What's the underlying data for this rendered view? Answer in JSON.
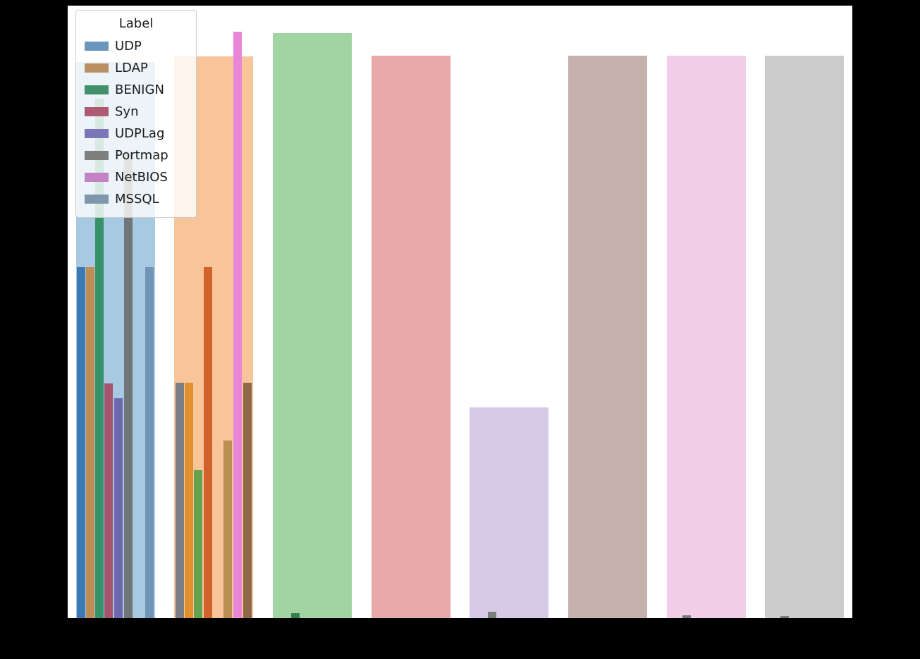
{
  "page": {
    "background": "#000000"
  },
  "legend": {
    "title": "Label",
    "entries": [
      {
        "label": "UDP",
        "color": "#6a95bf"
      },
      {
        "label": "LDAP",
        "color": "#b99063"
      },
      {
        "label": "BENIGN",
        "color": "#43916c"
      },
      {
        "label": "Syn",
        "color": "#ae5a75"
      },
      {
        "label": "UDPLag",
        "color": "#7b76b9"
      },
      {
        "label": "Portmap",
        "color": "#7f7f7f"
      },
      {
        "label": "NetBIOS",
        "color": "#c481c6"
      },
      {
        "label": "MSSQL",
        "color": "#7e97ad"
      }
    ]
  },
  "chart_data": {
    "type": "bar",
    "title": "",
    "xlabel": "",
    "ylabel": "",
    "legend_title": "Label",
    "legend_position": "upper left",
    "axis_tick_labels_visible": false,
    "categories": [
      "UDP",
      "LDAP",
      "BENIGN",
      "Syn",
      "UDPLag",
      "Portmap",
      "NetBIOS",
      "MSSQL"
    ],
    "background_bars": [
      {
        "category": "UDP",
        "left_pct": 1.08,
        "width_pct": 10.06,
        "height_pct": 90.8,
        "color": "#a7c9e1"
      },
      {
        "category": "LDAP",
        "left_pct": 13.57,
        "width_pct": 10.06,
        "height_pct": 91.7,
        "color": "#f8c59b"
      },
      {
        "category": "BENIGN",
        "left_pct": 26.15,
        "width_pct": 10.06,
        "height_pct": 95.5,
        "color": "#a2d3a2"
      },
      {
        "category": "Syn",
        "left_pct": 38.72,
        "width_pct": 10.06,
        "height_pct": 91.8,
        "color": "#e8a9a9"
      },
      {
        "category": "UDPLag",
        "left_pct": 51.21,
        "width_pct": 10.06,
        "height_pct": 34.4,
        "color": "#d5cbe7"
      },
      {
        "category": "Portmap",
        "left_pct": 63.79,
        "width_pct": 10.06,
        "height_pct": 91.8,
        "color": "#c5b2ad"
      },
      {
        "category": "NetBIOS",
        "left_pct": 76.37,
        "width_pct": 10.06,
        "height_pct": 91.8,
        "color": "#f2cde8"
      },
      {
        "category": "MSSQL",
        "left_pct": 88.86,
        "width_pct": 10.06,
        "height_pct": 91.8,
        "color": "#cccccc"
      }
    ],
    "sub_bars": [
      {
        "group": "UDP",
        "left_pct": 1.17,
        "width_pct": 1.08,
        "height_pct": 57.3,
        "color": "#3d7ab5"
      },
      {
        "group": "UDP",
        "left_pct": 2.34,
        "width_pct": 1.08,
        "height_pct": 57.3,
        "color": "#bf8c52"
      },
      {
        "group": "UDP",
        "left_pct": 3.5,
        "width_pct": 1.08,
        "height_pct": 84.8,
        "color": "#37926a"
      },
      {
        "group": "UDP",
        "left_pct": 4.67,
        "width_pct": 1.08,
        "height_pct": 38.3,
        "color": "#a65370"
      },
      {
        "group": "UDP",
        "left_pct": 5.93,
        "width_pct": 1.08,
        "height_pct": 35.9,
        "color": "#6e69ae"
      },
      {
        "group": "UDP",
        "left_pct": 7.19,
        "width_pct": 1.08,
        "height_pct": 76.2,
        "color": "#70757a"
      },
      {
        "group": "UDP",
        "left_pct": 9.88,
        "width_pct": 1.08,
        "height_pct": 57.3,
        "color": "#6f94b8"
      },
      {
        "group": "LDAP",
        "left_pct": 13.75,
        "width_pct": 1.08,
        "height_pct": 38.4,
        "color": "#7c8084"
      },
      {
        "group": "LDAP",
        "left_pct": 14.91,
        "width_pct": 1.08,
        "height_pct": 38.4,
        "color": "#e2902f"
      },
      {
        "group": "LDAP",
        "left_pct": 16.08,
        "width_pct": 1.08,
        "height_pct": 24.2,
        "color": "#63a24f"
      },
      {
        "group": "LDAP",
        "left_pct": 17.34,
        "width_pct": 1.08,
        "height_pct": 57.3,
        "color": "#d2622a"
      },
      {
        "group": "LDAP",
        "left_pct": 19.86,
        "width_pct": 1.08,
        "height_pct": 29.0,
        "color": "#ba8f50"
      },
      {
        "group": "LDAP",
        "left_pct": 21.11,
        "width_pct": 1.08,
        "height_pct": 95.7,
        "color": "#ea86d8"
      },
      {
        "group": "LDAP",
        "left_pct": 22.37,
        "width_pct": 1.08,
        "height_pct": 38.4,
        "color": "#91674a"
      },
      {
        "group": "BENIGN",
        "left_pct": 28.48,
        "width_pct": 1.08,
        "height_pct": 0.8,
        "color": "#387d4f"
      },
      {
        "group": "UDPLag",
        "left_pct": 53.55,
        "width_pct": 1.08,
        "height_pct": 1.0,
        "color": "#77807c"
      },
      {
        "group": "NetBIOS",
        "left_pct": 78.35,
        "width_pct": 1.08,
        "height_pct": 0.5,
        "color": "#7a7a7a"
      },
      {
        "group": "MSSQL",
        "left_pct": 90.84,
        "width_pct": 1.08,
        "height_pct": 0.4,
        "color": "#7a7a7a"
      }
    ]
  }
}
